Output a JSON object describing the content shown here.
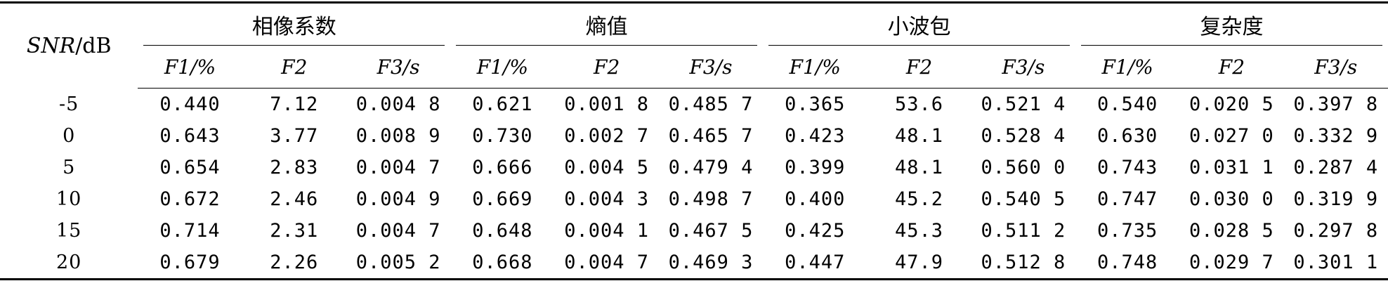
{
  "table": {
    "row_header": "SNR/dB",
    "groups": [
      "相像系数",
      "熵值",
      "小波包",
      "复杂度"
    ],
    "sub_headers": [
      "F1/%",
      "F2",
      "F3/s"
    ],
    "rows": [
      {
        "snr": "-5",
        "values": [
          "0.440",
          "7.12",
          "0.004 8",
          "0.621",
          "0.001 8",
          "0.485 7",
          "0.365",
          "53.6",
          "0.521 4",
          "0.540",
          "0.020 5",
          "0.397 8"
        ]
      },
      {
        "snr": "0",
        "values": [
          "0.643",
          "3.77",
          "0.008 9",
          "0.730",
          "0.002 7",
          "0.465 7",
          "0.423",
          "48.1",
          "0.528 4",
          "0.630",
          "0.027 0",
          "0.332 9"
        ]
      },
      {
        "snr": "5",
        "values": [
          "0.654",
          "2.83",
          "0.004 7",
          "0.666",
          "0.004 5",
          "0.479 4",
          "0.399",
          "48.1",
          "0.560 0",
          "0.743",
          "0.031 1",
          "0.287 4"
        ]
      },
      {
        "snr": "10",
        "values": [
          "0.672",
          "2.46",
          "0.004 9",
          "0.669",
          "0.004 3",
          "0.498 7",
          "0.400",
          "45.2",
          "0.540 5",
          "0.747",
          "0.030 0",
          "0.319 9"
        ]
      },
      {
        "snr": "15",
        "values": [
          "0.714",
          "2.31",
          "0.004 7",
          "0.648",
          "0.004 1",
          "0.467 5",
          "0.425",
          "45.3",
          "0.511 2",
          "0.735",
          "0.028 5",
          "0.297 8"
        ]
      },
      {
        "snr": "20",
        "values": [
          "0.679",
          "2.26",
          "0.005 2",
          "0.668",
          "0.004 7",
          "0.469 3",
          "0.447",
          "47.9",
          "0.512 8",
          "0.748",
          "0.029 7",
          "0.301 1"
        ]
      }
    ]
  }
}
